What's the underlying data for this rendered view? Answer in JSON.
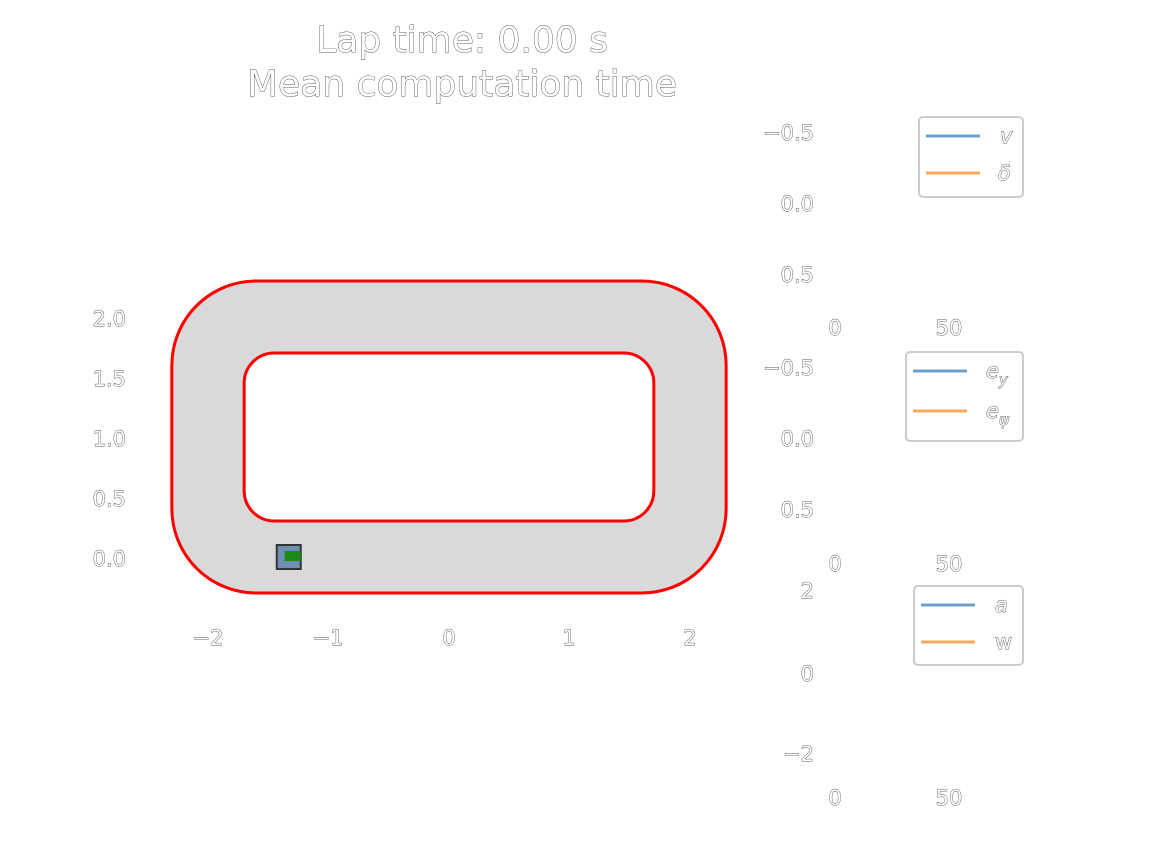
{
  "figure": {
    "title_line1": "Lap time: 0.00 s",
    "title_line2": "Mean computation time"
  },
  "colors": {
    "track_fill": "#d9d9d9",
    "boundary": "#ff0000",
    "car_body": "#6f8fb0",
    "car_outline": "#333333",
    "car_marker": "#1a8a1a",
    "series_blue": "#6a9fcc",
    "series_orange": "#f6a85b",
    "legend_border": "#cccccc"
  },
  "chart_data": [
    {
      "type": "line",
      "name": "track",
      "x_ticks": [
        "−2",
        "−1",
        "0",
        "1",
        "2"
      ],
      "y_ticks": [
        "0.0",
        "0.5",
        "1.0",
        "1.5",
        "2.0"
      ],
      "xlim": [
        -2.3,
        2.3
      ],
      "ylim": [
        -0.3,
        2.3
      ],
      "outer_boundary": {
        "x_range": [
          -2.3,
          2.3
        ],
        "y_range": [
          -0.3,
          2.3
        ],
        "corner_radius": 0.7
      },
      "inner_boundary": {
        "x_range": [
          -1.7,
          1.7
        ],
        "y_range": [
          0.3,
          1.7
        ],
        "corner_radius": 0.25
      },
      "car": {
        "x": -1.33,
        "y": 0.0
      }
    },
    {
      "type": "line",
      "name": "states_speed_steer",
      "y_ticks": [
        "−0.5",
        "0.0",
        "0.5"
      ],
      "x_ticks": [
        "0",
        "50"
      ],
      "ylim": [
        -0.5,
        0.5
      ],
      "legend": [
        "v",
        "δ"
      ],
      "legend_position": "top-right"
    },
    {
      "type": "line",
      "name": "tracking_errors",
      "y_ticks": [
        "−0.5",
        "0.0",
        "0.5"
      ],
      "x_ticks": [
        "0",
        "50"
      ],
      "ylim": [
        -0.5,
        0.5
      ],
      "legend": [
        "e",
        "e"
      ],
      "legend_subscripts": [
        "y",
        "ψ"
      ],
      "legend_position": "top-right"
    },
    {
      "type": "line",
      "name": "inputs",
      "y_ticks": [
        "2",
        "0",
        "−2"
      ],
      "x_ticks": [
        "0",
        "50"
      ],
      "ylim": [
        -2,
        2
      ],
      "legend": [
        "a",
        "w"
      ],
      "legend_position": "top-right"
    }
  ]
}
